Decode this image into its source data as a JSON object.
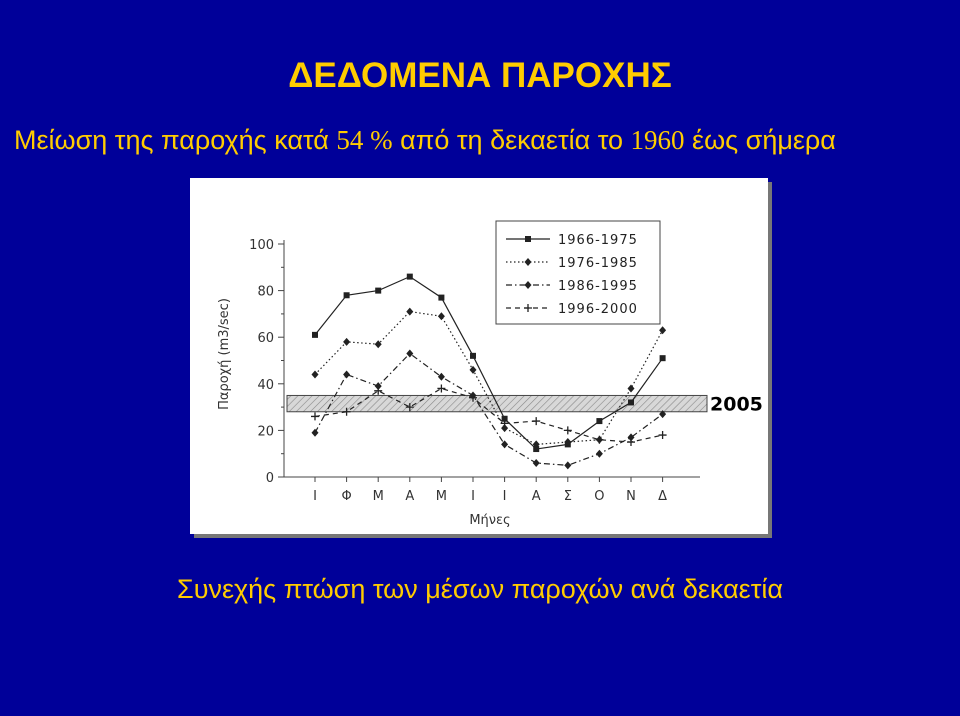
{
  "slide": {
    "title": "ΔΕΔΟΜΕΝΑ ΠΑΡΟΧΗΣ",
    "subtitle_parts": [
      "Μείωση της παροχής κατά ",
      "54 %",
      " από τη δεκαετία το ",
      "1960",
      " έως σήμερα"
    ],
    "caption": "Συνεχής πτώση των μέσων παροχών ανά δεκαετία",
    "colors": {
      "background": "#000099",
      "text": "#FFCC00"
    }
  },
  "chart_data": {
    "type": "line",
    "title": "",
    "xlabel": "Μήνες",
    "ylabel": "Παροχή (m3/sec)",
    "ylim": [
      0,
      100
    ],
    "yticks": [
      0,
      20,
      40,
      60,
      80,
      100
    ],
    "categories": [
      "Ι",
      "Φ",
      "Μ",
      "Α",
      "Μ",
      "Ι",
      "Ι",
      "Α",
      "Σ",
      "Ο",
      "Ν",
      "Δ"
    ],
    "legend_position": "top-right",
    "grid": false,
    "series": [
      {
        "name": "1966-1975",
        "marker": "square",
        "dash": "solid",
        "values": [
          61,
          78,
          80,
          86,
          77,
          52,
          25,
          12,
          14,
          24,
          32,
          51
        ]
      },
      {
        "name": "1976-1985",
        "marker": "diamond",
        "dash": "dotted",
        "values": [
          44,
          58,
          57,
          71,
          69,
          46,
          21,
          14,
          15,
          16,
          38,
          63
        ]
      },
      {
        "name": "1986-1995",
        "marker": "diamond",
        "dash": "dashdot",
        "values": [
          19,
          44,
          39,
          53,
          43,
          35,
          14,
          6,
          5,
          10,
          17,
          27
        ]
      },
      {
        "name": "1996-2000",
        "marker": "plus",
        "dash": "dashed",
        "values": [
          26,
          28,
          37,
          30,
          38,
          34,
          23,
          24,
          20,
          16,
          15,
          18
        ]
      }
    ],
    "band": {
      "label": "2005",
      "from": 28,
      "to": 35
    }
  }
}
